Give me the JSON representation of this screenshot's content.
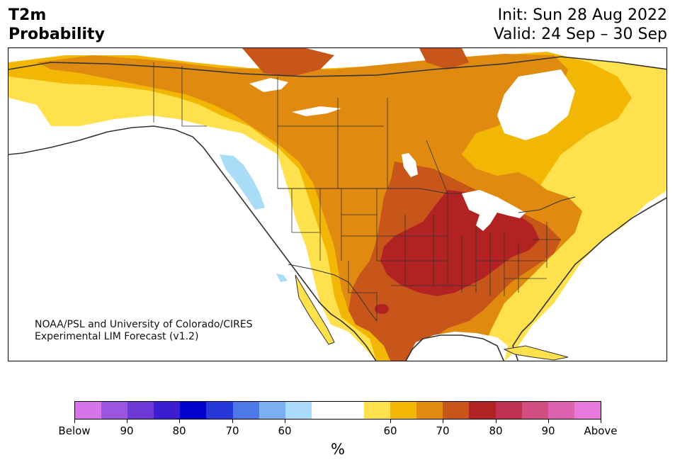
{
  "header": {
    "title_line1": "T2m",
    "title_line2": "Probability",
    "init_text": "Init: Sun 28 Aug 2022",
    "valid_text": "Valid: 24 Sep – 30 Sep"
  },
  "map": {
    "credit_line1": "NOAA/PSL and University of Colorado/CIRES",
    "credit_line2": "Experimental LIM Forecast (v1.2)",
    "layers": [
      {
        "category": "Above 60",
        "color": "#ffe14d"
      },
      {
        "category": "Above 65",
        "color": "#f2b705"
      },
      {
        "category": "Above 70",
        "color": "#e08a10"
      },
      {
        "category": "Above 75",
        "color": "#c8551a"
      },
      {
        "category": "Above 80",
        "color": "#b22222"
      },
      {
        "category": "Below 60",
        "color": "#a9dcf7"
      }
    ],
    "land_color": "#ffffff",
    "water_color": "#ffffff",
    "border_color": "#333333"
  },
  "colorbar": {
    "colors": [
      "#d575e8",
      "#9b55de",
      "#6e38d6",
      "#3c1dd0",
      "#0000cd",
      "#2638d8",
      "#4d78ea",
      "#7ab0f3",
      "#acdcfb",
      "#ffffff",
      "#ffffff",
      "#ffe14d",
      "#f2b705",
      "#e08a10",
      "#c8551a",
      "#b22222",
      "#c03050",
      "#d04e80",
      "#dd62b0",
      "#e878dc"
    ],
    "tick_labels": [
      "Below",
      "90",
      "80",
      "70",
      "60",
      "60",
      "70",
      "80",
      "90",
      "Above"
    ],
    "unit_label": "%"
  }
}
